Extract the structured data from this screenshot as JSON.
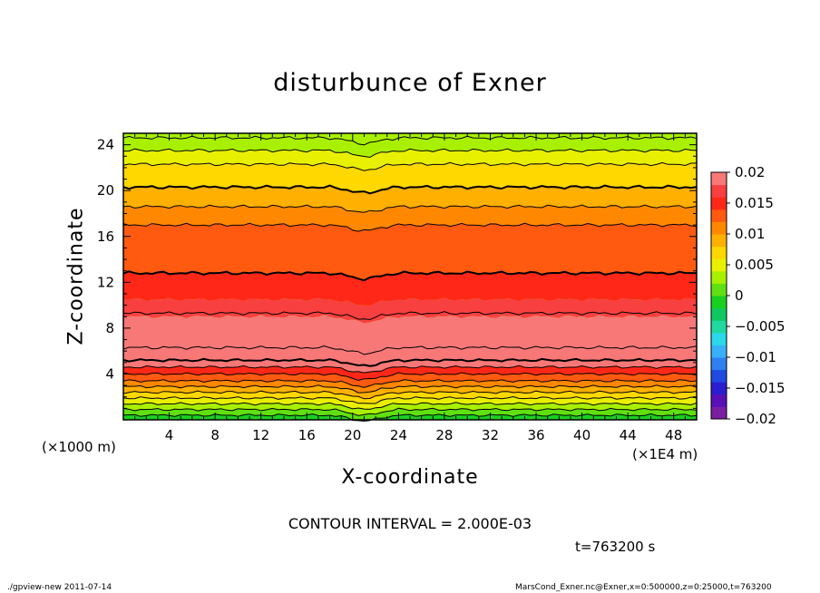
{
  "chart_data": {
    "type": "heatmap",
    "title": "disturbunce of Exner",
    "xlabel": "X-coordinate",
    "ylabel": "Z-coordinate",
    "x_unit_left": "(×1000 m)",
    "x_unit_right": "(×1E4 m)",
    "xlim": [
      0,
      50
    ],
    "ylim": [
      0,
      25
    ],
    "xticks": [
      4,
      8,
      12,
      16,
      20,
      24,
      28,
      32,
      36,
      40,
      44,
      48
    ],
    "yticks": [
      4,
      8,
      12,
      16,
      20,
      24
    ],
    "colorbar": {
      "levels": [
        -0.02,
        -0.018,
        -0.016,
        -0.014,
        -0.012,
        -0.01,
        -0.008,
        -0.006,
        -0.004,
        -0.002,
        0,
        0.002,
        0.004,
        0.006,
        0.008,
        0.01,
        0.012,
        0.014,
        0.016,
        0.018,
        0.02
      ],
      "labels": [
        "0.02",
        "0.015",
        "0.01",
        "0.005",
        "0",
        "−0.005",
        "−0.01",
        "−0.015",
        "−0.02"
      ],
      "colors": [
        "#7a1fa0",
        "#5a10b8",
        "#2a1ed0",
        "#1f4be0",
        "#2f7ff0",
        "#38b0f8",
        "#2ad8e8",
        "#20d8a0",
        "#10c860",
        "#18d020",
        "#60e010",
        "#a8f000",
        "#e8f000",
        "#ffd800",
        "#ffb000",
        "#ff8800",
        "#ff5a10",
        "#ff2818",
        "#f84040",
        "#f87878"
      ]
    },
    "bands": [
      {
        "z": 24.6,
        "value": 0.004
      },
      {
        "z": 23.5,
        "value": 0.006
      },
      {
        "z": 22.3,
        "value": 0.008
      },
      {
        "z": 20.3,
        "value": 0.01
      },
      {
        "z": 18.6,
        "value": 0.012
      },
      {
        "z": 17.0,
        "value": 0.014
      },
      {
        "z": 12.8,
        "value": 0.016
      },
      {
        "z": 10.5,
        "value": 0.018
      },
      {
        "z": 9.0,
        "value": 0.02
      },
      {
        "z": 5.2,
        "value": 0.02
      },
      {
        "z": 4.6,
        "value": 0.016
      },
      {
        "z": 4.0,
        "value": 0.014
      },
      {
        "z": 3.4,
        "value": 0.012
      },
      {
        "z": 2.9,
        "value": 0.01
      },
      {
        "z": 2.4,
        "value": 0.008
      },
      {
        "z": 1.9,
        "value": 0.006
      },
      {
        "z": 1.4,
        "value": 0.004
      },
      {
        "z": 0.9,
        "value": 0.002
      },
      {
        "z": 0.4,
        "value": 0.0
      }
    ],
    "contour_lines_z": [
      24.6,
      23.5,
      22.3,
      20.3,
      18.6,
      17.0,
      12.8,
      9.3,
      6.3,
      5.2,
      4.6,
      4.0,
      3.4,
      2.9,
      2.4,
      1.9,
      1.4,
      0.9,
      0.4
    ]
  },
  "contour_interval": "CONTOUR INTERVAL = 2.000E-03",
  "time_label": "t=763200 s",
  "footer_left": "./gpview-new   2011-07-14",
  "footer_right": "MarsCond_Exner.nc@Exner,x=0:500000,z=0:25000,t=763200"
}
